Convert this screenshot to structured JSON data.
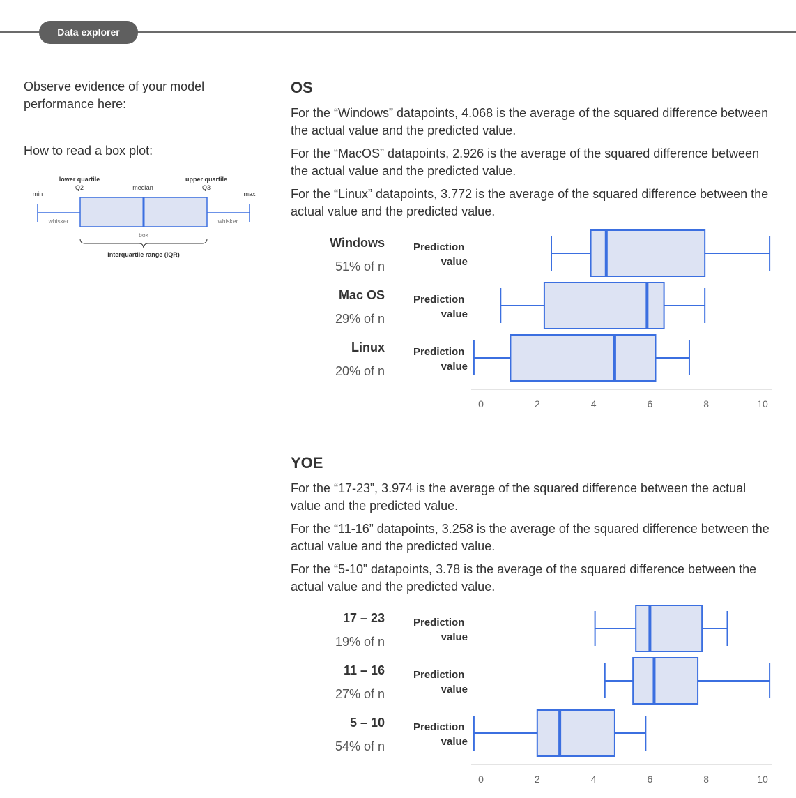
{
  "header": {
    "tab_label": "Data explorer"
  },
  "intro": {
    "text": "Observe evidence of your model performance here:",
    "howto": "How to read a box plot:"
  },
  "legend": {
    "lower_quartile": "lower quartile",
    "q2": "Q2",
    "median": "median",
    "upper_quartile": "upper quartile",
    "q3": "Q3",
    "min": "min",
    "max": "max",
    "whisker_left": "whisker",
    "whisker_right": "whisker",
    "box": "box",
    "iqr": "Interquartile range (IQR)"
  },
  "colors": {
    "accent": "#3b6fe0",
    "box_fill": "#dde3f3",
    "text": "#333333"
  },
  "sections": [
    {
      "title": "OS",
      "descriptions": [
        "For the “Windows” datapoints, 4.068 is the average of the squared difference between the actual value and the predicted value.",
        "For the “MacOS” datapoints, 2.926 is the average of the squared difference between the actual value and the predicted value.",
        "For the “Linux” datapoints, 3.772 is the average of the squared difference between the actual value and the predicted value."
      ],
      "rows": [
        {
          "name": "Windows",
          "pct": "51% of n",
          "pred_line1": "Prediction",
          "pred_line2": "value"
        },
        {
          "name": "Mac OS",
          "pct": "29% of n",
          "pred_line1": "Prediction",
          "pred_line2": "value"
        },
        {
          "name": "Linux",
          "pct": "20% of n",
          "pred_line1": "Prediction",
          "pred_line2": "value"
        }
      ]
    },
    {
      "title": "YOE",
      "descriptions": [
        "For the “17-23”, 3.974 is the average of the squared difference between the actual value and the predicted value.",
        "For the “11-16” datapoints, 3.258 is the average of the squared difference between the actual value and the predicted value.",
        "For the “5-10” datapoints, 3.78 is the average of the squared difference between the actual value and the predicted value."
      ],
      "rows": [
        {
          "name": "17 – 23",
          "pct": "19% of n",
          "pred_line1": "Prediction",
          "pred_line2": "value"
        },
        {
          "name": "11 – 16",
          "pct": "27% of n",
          "pred_line1": "Prediction",
          "pred_line2": "value"
        },
        {
          "name": "5 – 10",
          "pct": "54% of n",
          "pred_line1": "Prediction",
          "pred_line2": "value"
        }
      ]
    }
  ],
  "chart_data": [
    {
      "type": "box",
      "title": "OS",
      "xlim": [
        0,
        10
      ],
      "xticks": [
        "0",
        "2",
        "4",
        "6",
        "8",
        "10"
      ],
      "categories": [
        "Windows",
        "Mac OS",
        "Linux"
      ],
      "boxes": [
        {
          "category": "Windows",
          "min": 2.5,
          "q1": 3.9,
          "median": 4.45,
          "q3": 7.95,
          "max": 10.25
        },
        {
          "category": "Mac OS",
          "min": 0.7,
          "q1": 2.25,
          "median": 5.9,
          "q3": 6.5,
          "max": 7.95
        },
        {
          "category": "Linux",
          "min": -0.25,
          "q1": 1.05,
          "median": 4.75,
          "q3": 6.2,
          "max": 7.4
        }
      ]
    },
    {
      "type": "box",
      "title": "YOE",
      "xlim": [
        0,
        10
      ],
      "xticks": [
        "0",
        "2",
        "4",
        "6",
        "8",
        "10"
      ],
      "categories": [
        "17 – 23",
        "11 – 16",
        "5 – 10"
      ],
      "boxes": [
        {
          "category": "17 – 23",
          "min": 4.05,
          "q1": 5.5,
          "median": 6.0,
          "q3": 7.85,
          "max": 8.75
        },
        {
          "category": "11 – 16",
          "min": 4.4,
          "q1": 5.4,
          "median": 6.15,
          "q3": 7.7,
          "max": 10.25
        },
        {
          "category": "5 – 10",
          "min": -0.25,
          "q1": 2.0,
          "median": 2.8,
          "q3": 4.75,
          "max": 5.85
        }
      ]
    }
  ]
}
